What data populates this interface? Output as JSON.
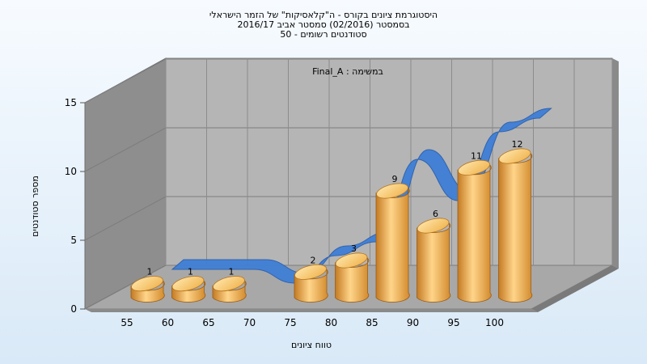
{
  "chart_data": {
    "type": "bar",
    "title_lines": [
      "היסטוגרמת ציונים בקורס - ה\"קלאסיקות\" של הזמר הישראלי",
      "בסמסטר  (02/2016)  סמסטר אביב 2016/17",
      "סטודנטים רשומים - 50"
    ],
    "annotation": "Final_A : במשימה",
    "xlabel": "טווח ציונים",
    "ylabel": "מספר סטודנטים",
    "categories": [
      "55",
      "60",
      "65",
      "70",
      "75",
      "80",
      "85",
      "90",
      "95",
      "100"
    ],
    "values": [
      1,
      1,
      1,
      0,
      2,
      3,
      9,
      6,
      11,
      12
    ],
    "value_labels": [
      "1",
      "1",
      "1",
      "",
      "2",
      "3",
      "9",
      "6",
      "11",
      "12"
    ],
    "yticks": [
      "0",
      "5",
      "10",
      "15"
    ],
    "ylim": [
      0,
      15
    ],
    "grid": true,
    "legend": "none",
    "colors": {
      "bar": "#e8a23a",
      "bar_light": "#ffd98a",
      "bar_dark": "#b9701c",
      "ribbon": "#3f7fd6",
      "ribbon_dark": "#2a5fae",
      "wall_left": "#8f8f8f",
      "wall_back": "#b3b3b3",
      "floor": "#a9a9a9"
    }
  }
}
